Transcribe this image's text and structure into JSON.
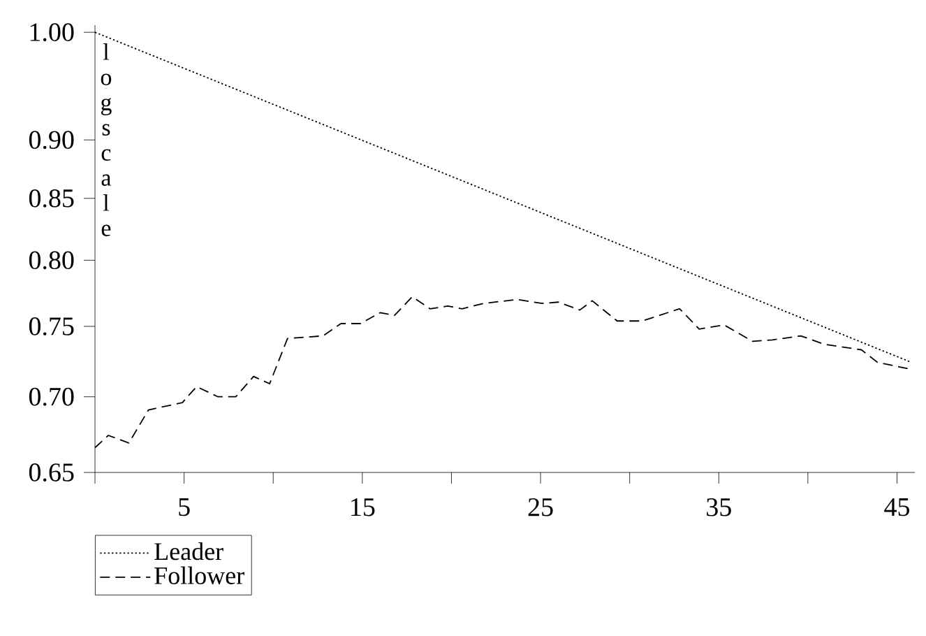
{
  "chart_data": {
    "type": "line",
    "ylabel": "log scale",
    "log": "y",
    "legend": "bottom left",
    "grid": false,
    "xlim": [
      0,
      46
    ],
    "ylim": [
      0.65,
      1.007
    ],
    "xticks": [
      {
        "value": 0,
        "label": null
      },
      5,
      {
        "value": 10,
        "label": null
      },
      15,
      {
        "value": 20,
        "label": null
      },
      25,
      {
        "value": 30,
        "label": null
      },
      35,
      {
        "value": 40,
        "label": null
      },
      45
    ],
    "yticks": [
      {
        "value": 0.65,
        "label": "0.65"
      },
      {
        "value": 0.7,
        "label": "0.70"
      },
      {
        "value": 0.75,
        "label": "0.75"
      },
      {
        "value": 0.8,
        "label": "0.80"
      },
      {
        "value": 0.85,
        "label": "0.85"
      },
      {
        "value": 0.9,
        "label": "0.90"
      },
      {
        "value": 1,
        "label": "1.00"
      }
    ],
    "series": [
      {
        "name": "Leader",
        "color": "#000000",
        "line_style": "dotted",
        "x": [
          0,
          45.8
        ],
        "values": [
          1.0,
          0.724
        ]
      },
      {
        "name": "Follower",
        "color": "#000000",
        "line_style": "dashed",
        "x": [
          0,
          0.75,
          1.9,
          3,
          4.9,
          5.7,
          6.9,
          7.9,
          8.9,
          9.8,
          10.8,
          12.8,
          13.8,
          14.9,
          16,
          16.8,
          17.8,
          18.8,
          19.8,
          20.6,
          21.8,
          23.7,
          25.1,
          26,
          27.2,
          27.9,
          29.3,
          30.7,
          32.8,
          33.9,
          35.3,
          36.9,
          38,
          39.6,
          40.9,
          43,
          43.9,
          45.8
        ],
        "values": [
          0.666,
          0.674,
          0.669,
          0.691,
          0.696,
          0.707,
          0.7,
          0.7,
          0.714,
          0.709,
          0.741,
          0.743,
          0.752,
          0.752,
          0.76,
          0.758,
          0.772,
          0.763,
          0.765,
          0.763,
          0.767,
          0.77,
          0.767,
          0.768,
          0.762,
          0.769,
          0.754,
          0.754,
          0.763,
          0.748,
          0.751,
          0.739,
          0.74,
          0.743,
          0.737,
          0.733,
          0.724,
          0.719
        ]
      }
    ]
  }
}
